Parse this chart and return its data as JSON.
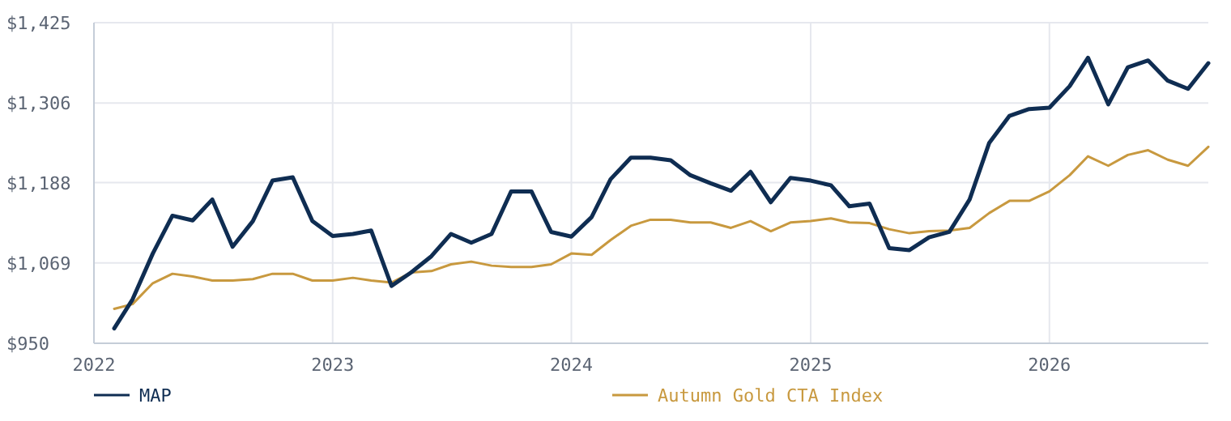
{
  "chart_data": {
    "type": "line",
    "x": [
      "2022-02",
      "2022-03",
      "2022-04",
      "2022-05",
      "2022-06",
      "2022-07",
      "2022-08",
      "2022-09",
      "2022-10",
      "2022-11",
      "2022-12",
      "2023-01",
      "2023-02",
      "2023-03",
      "2023-04",
      "2023-05",
      "2023-06",
      "2023-07",
      "2023-08",
      "2023-09",
      "2023-10",
      "2023-11",
      "2023-12",
      "2024-01",
      "2024-02",
      "2024-03",
      "2024-04",
      "2024-05",
      "2024-06",
      "2024-07",
      "2024-08",
      "2024-09",
      "2024-10",
      "2024-11",
      "2024-12",
      "2025-01",
      "2025-02",
      "2025-03",
      "2025-04",
      "2025-05",
      "2025-06",
      "2025-07",
      "2025-08",
      "2025-09",
      "2025-10",
      "2025-11",
      "2025-12",
      "2026-01",
      "2026-02",
      "2026-03",
      "2026-04",
      "2026-05",
      "2026-06",
      "2026-07",
      "2026-08",
      "2026-09"
    ],
    "series": [
      {
        "name": "MAP",
        "color": "#0f2d52",
        "values": [
          972,
          1015,
          1083,
          1139,
          1132,
          1163,
          1093,
          1131,
          1191,
          1196,
          1131,
          1109,
          1112,
          1117,
          1035,
          1055,
          1079,
          1112,
          1099,
          1112,
          1175,
          1175,
          1115,
          1108,
          1137,
          1193,
          1225,
          1225,
          1221,
          1199,
          1187,
          1176,
          1204,
          1159,
          1195,
          1191,
          1184,
          1153,
          1157,
          1091,
          1088,
          1107,
          1115,
          1163,
          1247,
          1287,
          1297,
          1299,
          1331,
          1373,
          1304,
          1359,
          1369,
          1339,
          1327,
          1365
        ]
      },
      {
        "name": "Autumn Gold CTA Index",
        "color": "#c8993f",
        "values": [
          1001,
          1008,
          1039,
          1053,
          1049,
          1043,
          1043,
          1045,
          1053,
          1053,
          1043,
          1043,
          1047,
          1043,
          1040,
          1055,
          1057,
          1067,
          1071,
          1065,
          1063,
          1063,
          1067,
          1083,
          1081,
          1103,
          1124,
          1133,
          1133,
          1129,
          1129,
          1121,
          1131,
          1116,
          1129,
          1131,
          1135,
          1129,
          1128,
          1119,
          1113,
          1116,
          1117,
          1121,
          1143,
          1161,
          1161,
          1175,
          1199,
          1227,
          1213,
          1229,
          1236,
          1222,
          1213,
          1241
        ]
      }
    ],
    "xlim": [
      "2022-01",
      "2026-09"
    ],
    "xticks": [
      {
        "value": "2022",
        "label": "2022"
      },
      {
        "value": "2023",
        "label": "2023"
      },
      {
        "value": "2024",
        "label": "2024"
      },
      {
        "value": "2025",
        "label": "2025"
      },
      {
        "value": "2026",
        "label": "2026"
      }
    ],
    "ylim": [
      950,
      1425
    ],
    "yticks": [
      {
        "value": 950,
        "label": "$950"
      },
      {
        "value": 1069,
        "label": "$1,069"
      },
      {
        "value": 1188,
        "label": "$1,188"
      },
      {
        "value": 1306,
        "label": "$1,306"
      },
      {
        "value": 1425,
        "label": "$1,425"
      }
    ],
    "grid": true,
    "legend": "bottom",
    "marker": "none",
    "line_style": "solid"
  }
}
